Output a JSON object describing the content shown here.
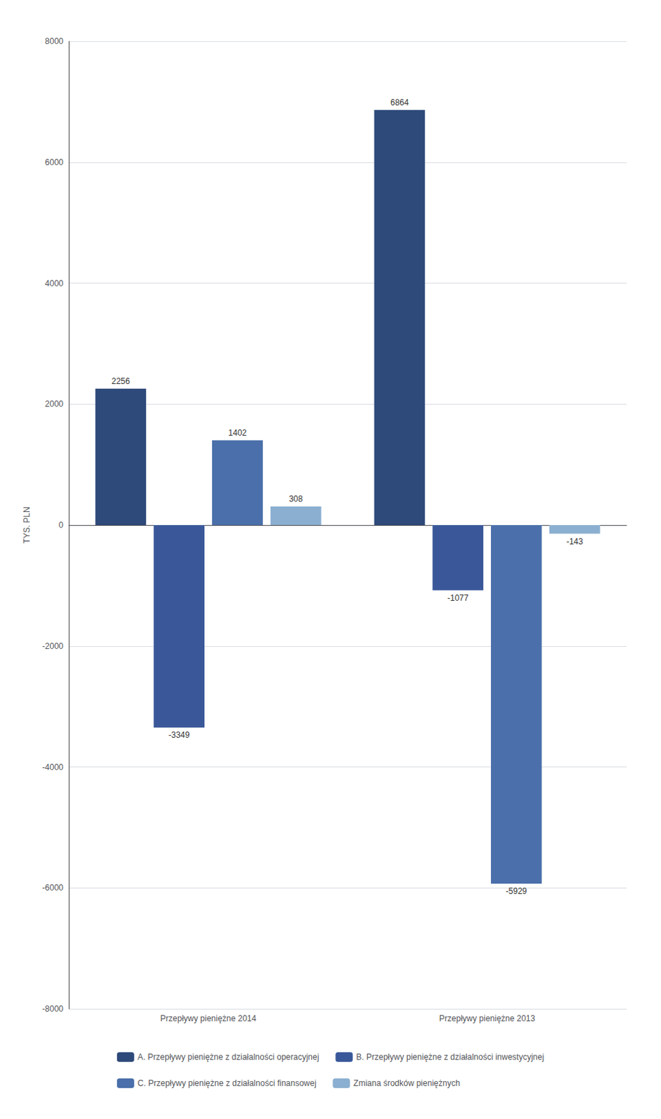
{
  "chart_data": {
    "type": "bar",
    "categories": [
      "Przepływy pieniężne 2014",
      "Przepływy pieniężne 2013"
    ],
    "series": [
      {
        "name": "A. Przepływy pieniężne z działalności operacyjnej",
        "color": "#2E4A7A",
        "values": [
          2256,
          6864
        ]
      },
      {
        "name": "B. Przepływy pieniężne z działalności inwestycyjnej",
        "color": "#3A5899",
        "values": [
          -3349,
          -1077
        ]
      },
      {
        "name": "C. Przepływy pieniężne z działalności finansowej",
        "color": "#4A6FAA",
        "values": [
          1402,
          -5929
        ]
      },
      {
        "name": "Zmiana środków pieniężnych",
        "color": "#8BAFD0",
        "values": [
          308,
          -143
        ]
      }
    ],
    "ylabel": "TYS. PLN",
    "ylim": [
      -8000,
      8000
    ],
    "yticks": [
      -8000,
      -6000,
      -4000,
      -2000,
      0,
      2000,
      4000,
      6000,
      8000
    ],
    "grid": true,
    "legend": "bottom",
    "data_labels": true
  }
}
